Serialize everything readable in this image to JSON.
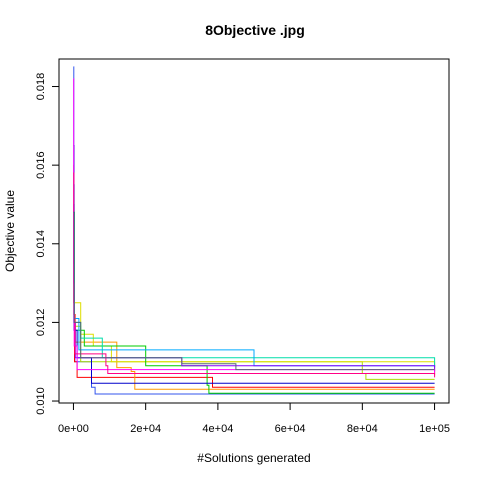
{
  "chart_data": {
    "type": "line",
    "title": "8Objective .jpg",
    "xlabel": "#Solutions generated",
    "ylabel": "Objective value",
    "xlim": [
      -4000,
      104000
    ],
    "ylim": [
      0.00995,
      0.0187
    ],
    "x_ticks": [
      {
        "value": 0,
        "label": "0e+00"
      },
      {
        "value": 20000,
        "label": "2e+04"
      },
      {
        "value": 40000,
        "label": "4e+04"
      },
      {
        "value": 60000,
        "label": "6e+04"
      },
      {
        "value": 80000,
        "label": "8e+04"
      },
      {
        "value": 100000,
        "label": "1e+05"
      }
    ],
    "y_ticks": [
      {
        "value": 0.01,
        "label": "0.010"
      },
      {
        "value": 0.012,
        "label": "0.012"
      },
      {
        "value": 0.014,
        "label": "0.014"
      },
      {
        "value": 0.016,
        "label": "0.016"
      },
      {
        "value": 0.018,
        "label": "0.018"
      }
    ],
    "grid": false,
    "legend": "none",
    "series": [
      {
        "color": "#3355ee",
        "points": [
          [
            0,
            0.0185
          ],
          [
            100,
            0.0135
          ],
          [
            200,
            0.0118
          ],
          [
            400,
            0.011
          ],
          [
            5000,
            0.01035
          ],
          [
            6000,
            0.01018
          ],
          [
            100000,
            0.01018
          ]
        ]
      },
      {
        "color": "#ff0000",
        "points": [
          [
            0,
            0.016
          ],
          [
            100,
            0.0125
          ],
          [
            300,
            0.011
          ],
          [
            1000,
            0.0106
          ],
          [
            38000,
            0.0106
          ],
          [
            38500,
            0.01035
          ],
          [
            100000,
            0.01035
          ]
        ]
      },
      {
        "color": "#ff9900",
        "points": [
          [
            0,
            0.0142
          ],
          [
            150,
            0.0122
          ],
          [
            500,
            0.0115
          ],
          [
            12000,
            0.01085
          ],
          [
            16000,
            0.01075
          ],
          [
            17000,
            0.0103
          ],
          [
            100000,
            0.0103
          ]
        ]
      },
      {
        "color": "#aadd00",
        "points": [
          [
            0,
            0.014
          ],
          [
            200,
            0.0119
          ],
          [
            2000,
            0.011
          ],
          [
            80000,
            0.0107
          ],
          [
            81000,
            0.01055
          ],
          [
            100000,
            0.01055
          ]
        ]
      },
      {
        "color": "#dddd00",
        "points": [
          [
            0,
            0.0145
          ],
          [
            200,
            0.0125
          ],
          [
            2000,
            0.0117
          ],
          [
            5000,
            0.0117
          ],
          [
            5500,
            0.0114
          ],
          [
            10000,
            0.0114
          ],
          [
            10500,
            0.011
          ],
          [
            100000,
            0.01065
          ]
        ]
      },
      {
        "color": "#00cc00",
        "points": [
          [
            0,
            0.0148
          ],
          [
            300,
            0.0118
          ],
          [
            3000,
            0.0114
          ],
          [
            20000,
            0.0109
          ],
          [
            37000,
            0.0104
          ],
          [
            37500,
            0.0102
          ],
          [
            100000,
            0.0102
          ]
        ]
      },
      {
        "color": "#00ddaa",
        "points": [
          [
            0,
            0.015
          ],
          [
            200,
            0.012
          ],
          [
            2000,
            0.0116
          ],
          [
            8000,
            0.0111
          ],
          [
            100000,
            0.01088
          ]
        ]
      },
      {
        "color": "#00aaff",
        "points": [
          [
            0,
            0.0155
          ],
          [
            200,
            0.0121
          ],
          [
            1500,
            0.0113
          ],
          [
            50000,
            0.0109
          ],
          [
            100000,
            0.01085
          ]
        ]
      },
      {
        "color": "#0000cc",
        "points": [
          [
            0,
            0.0165
          ],
          [
            150,
            0.0118
          ],
          [
            1000,
            0.0111
          ],
          [
            5000,
            0.01045
          ],
          [
            100000,
            0.01045
          ]
        ]
      },
      {
        "color": "#8800ff",
        "points": [
          [
            0,
            0.015
          ],
          [
            100,
            0.012
          ],
          [
            500,
            0.0111
          ],
          [
            30000,
            0.0109
          ],
          [
            100000,
            0.01075
          ]
        ]
      },
      {
        "color": "#ff00ff",
        "points": [
          [
            0,
            0.0182
          ],
          [
            80,
            0.013
          ],
          [
            200,
            0.0114
          ],
          [
            1000,
            0.0108
          ],
          [
            100000,
            0.0107
          ]
        ]
      },
      {
        "color": "#ff0088",
        "points": [
          [
            0,
            0.0158
          ],
          [
            120,
            0.0122
          ],
          [
            400,
            0.0112
          ],
          [
            9000,
            0.0109
          ],
          [
            9500,
            0.0107
          ],
          [
            100000,
            0.0106
          ]
        ]
      },
      {
        "color": "#556677",
        "points": [
          [
            0,
            0.0148
          ],
          [
            200,
            0.012
          ],
          [
            2000,
            0.0111
          ],
          [
            30000,
            0.01095
          ],
          [
            45000,
            0.0108
          ],
          [
            100000,
            0.0108
          ]
        ]
      }
    ]
  }
}
